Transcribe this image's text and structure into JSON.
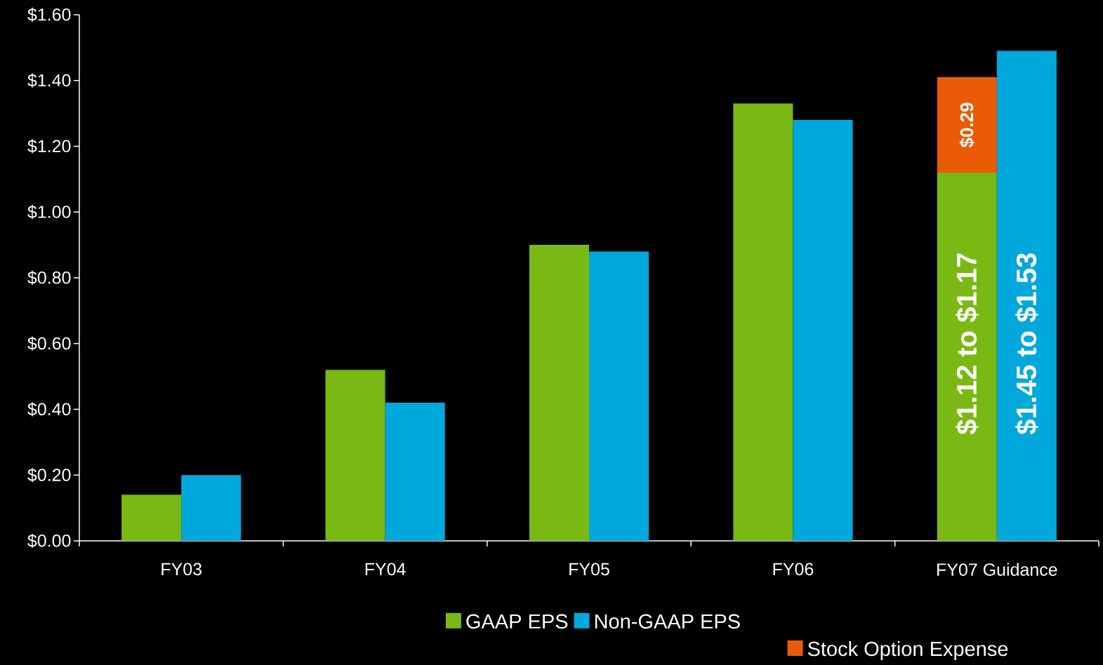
{
  "chart_data": {
    "type": "bar",
    "categories": [
      "FY03",
      "FY04",
      "FY05",
      "FY06",
      "FY07 Guidance"
    ],
    "series": [
      {
        "name": "GAAP EPS",
        "color": "#7ab913",
        "values": [
          0.14,
          0.52,
          0.9,
          1.33,
          1.12
        ]
      },
      {
        "name": "Stock Option Expense",
        "color": "#eb5a06",
        "values": [
          null,
          null,
          null,
          null,
          0.29
        ],
        "base": [
          null,
          null,
          null,
          null,
          1.12
        ],
        "value_labels": [
          null,
          null,
          null,
          null,
          "$0.29"
        ]
      },
      {
        "name": "Non-GAAP EPS",
        "color": "#00a8dc",
        "values": [
          0.2,
          0.42,
          0.88,
          1.28,
          1.49
        ]
      }
    ],
    "annotations": [
      {
        "text": "$1.12 to $1.17",
        "x": "FY07 Guidance",
        "y": 0.6
      },
      {
        "text": "$1.45 to $1.53",
        "x": "FY07 Guidance",
        "y": 0.6
      }
    ],
    "ylim": [
      0,
      1.6
    ],
    "yticks": [
      {
        "value": 0,
        "label": "$0.00"
      },
      {
        "value": 0.2,
        "label": "$0.20"
      },
      {
        "value": 0.4,
        "label": "$0.40"
      },
      {
        "value": 0.6,
        "label": "$0.60"
      },
      {
        "value": 0.8,
        "label": "$0.80"
      },
      {
        "value": 1.0,
        "label": "$1.00"
      },
      {
        "value": 1.2,
        "label": "$1.20"
      },
      {
        "value": 1.4,
        "label": "$1.40"
      },
      {
        "value": 1.6,
        "label": "$1.60"
      }
    ],
    "grid": false,
    "legend": "bottom"
  }
}
